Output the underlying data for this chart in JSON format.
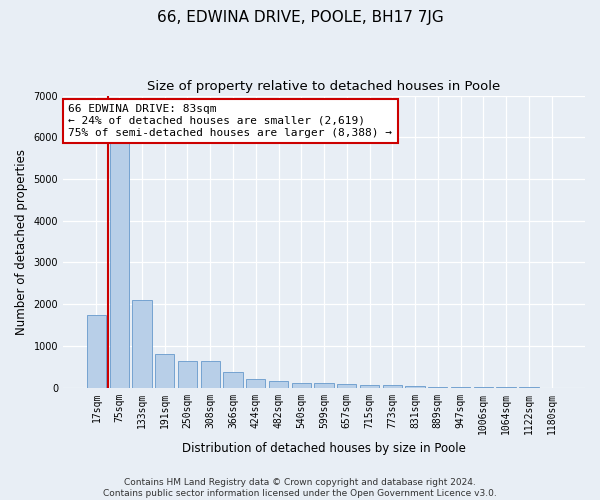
{
  "title": "66, EDWINA DRIVE, POOLE, BH17 7JG",
  "subtitle": "Size of property relative to detached houses in Poole",
  "xlabel": "Distribution of detached houses by size in Poole",
  "ylabel": "Number of detached properties",
  "footer_line1": "Contains HM Land Registry data © Crown copyright and database right 2024.",
  "footer_line2": "Contains public sector information licensed under the Open Government Licence v3.0.",
  "annotation_title": "66 EDWINA DRIVE: 83sqm",
  "annotation_line2": "← 24% of detached houses are smaller (2,619)",
  "annotation_line3": "75% of semi-detached houses are larger (8,388) →",
  "bar_color": "#b8cfe8",
  "bar_edge_color": "#6699cc",
  "vline_color": "#cc0000",
  "annotation_box_facecolor": "#ffffff",
  "annotation_box_edgecolor": "#cc0000",
  "categories": [
    "17sqm",
    "75sqm",
    "133sqm",
    "191sqm",
    "250sqm",
    "308sqm",
    "366sqm",
    "424sqm",
    "482sqm",
    "540sqm",
    "599sqm",
    "657sqm",
    "715sqm",
    "773sqm",
    "831sqm",
    "889sqm",
    "947sqm",
    "1006sqm",
    "1064sqm",
    "1122sqm",
    "1180sqm"
  ],
  "values": [
    1750,
    5900,
    2100,
    800,
    650,
    650,
    380,
    200,
    150,
    115,
    110,
    80,
    75,
    55,
    40,
    28,
    18,
    12,
    8,
    5,
    4
  ],
  "ylim": [
    0,
    7000
  ],
  "yticks": [
    0,
    1000,
    2000,
    3000,
    4000,
    5000,
    6000,
    7000
  ],
  "vline_x_index": 1,
  "bg_color": "#e8eef5",
  "plot_bg_color": "#e8eef5",
  "grid_color": "#ffffff",
  "title_fontsize": 11,
  "subtitle_fontsize": 9.5,
  "axis_label_fontsize": 8.5,
  "tick_fontsize": 7,
  "annotation_fontsize": 8,
  "footer_fontsize": 6.5
}
